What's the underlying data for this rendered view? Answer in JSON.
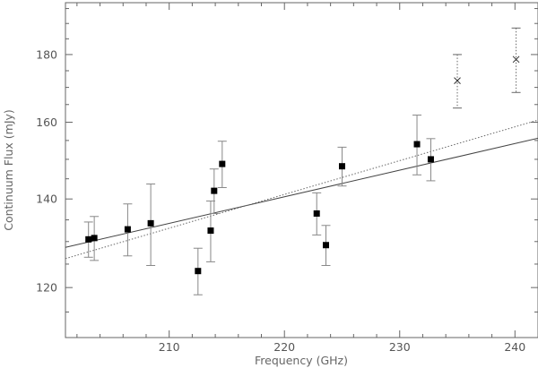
{
  "chart_data": {
    "type": "scatter",
    "xlabel": "Frequency (GHz)",
    "ylabel": "Continuum Flux (mJy)",
    "xlim": [
      201,
      242
    ],
    "ylim": [
      110,
      197
    ],
    "yscale": "log",
    "grid": false,
    "x_ticks": [
      210,
      220,
      230,
      240
    ],
    "x_tick_labels": [
      "210",
      "220",
      "230",
      "240"
    ],
    "y_ticks": [
      120,
      140,
      160,
      180
    ],
    "y_tick_labels": [
      "120",
      "140",
      "160",
      "180"
    ],
    "series": [
      {
        "marker": "square",
        "errorbar_style": "solid",
        "points": [
          {
            "x": 203.0,
            "y": 130.5,
            "err": 4
          },
          {
            "x": 203.5,
            "y": 130.8,
            "err": 5
          },
          {
            "x": 206.4,
            "y": 132.8,
            "err": 6
          },
          {
            "x": 208.4,
            "y": 134.2,
            "err": 9.5
          },
          {
            "x": 212.5,
            "y": 123.5,
            "err": 5
          },
          {
            "x": 213.6,
            "y": 132.5,
            "err": 7
          },
          {
            "x": 213.9,
            "y": 142.0,
            "err": 5.5
          },
          {
            "x": 214.6,
            "y": 148.8,
            "err": 6
          },
          {
            "x": 222.8,
            "y": 136.5,
            "err": 5
          },
          {
            "x": 223.6,
            "y": 129.2,
            "err": 4.5
          },
          {
            "x": 225.0,
            "y": 148.2,
            "err": 5
          },
          {
            "x": 231.5,
            "y": 154.0,
            "err": 8
          },
          {
            "x": 232.7,
            "y": 150.0,
            "err": 5.5
          }
        ]
      },
      {
        "marker": "cross",
        "errorbar_style": "dotted",
        "points": [
          {
            "x": 235.0,
            "y": 172.0,
            "err": 8
          },
          {
            "x": 240.1,
            "y": 178.5,
            "err": 10
          }
        ]
      }
    ],
    "fit_lines": [
      {
        "style": "solid",
        "x": [
          201,
          242
        ],
        "y": [
          128.7,
          155.6
        ]
      },
      {
        "style": "dotted",
        "x": [
          201,
          242
        ],
        "y": [
          126.2,
          160.6
        ]
      }
    ]
  }
}
